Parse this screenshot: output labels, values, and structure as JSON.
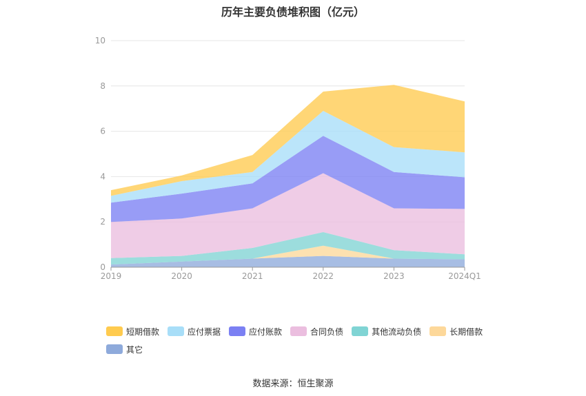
{
  "title": "历年主要负债堆积图（亿元）",
  "source": "数据来源：恒生聚源",
  "chart_data": {
    "type": "area",
    "stacked": true,
    "categories": [
      "2019",
      "2020",
      "2021",
      "2022",
      "2023",
      "2024Q1"
    ],
    "ylim": [
      0,
      10
    ],
    "yticks": [
      "0",
      "2",
      "4",
      "6",
      "8",
      "10"
    ],
    "grid": true,
    "legend_position": "bottom",
    "series": [
      {
        "name": "其它",
        "color": "#8eaadb",
        "values": [
          0.12,
          0.25,
          0.38,
          0.5,
          0.38,
          0.35
        ]
      },
      {
        "name": "长期借款",
        "color": "#fdd89a",
        "values": [
          0.0,
          0.0,
          0.0,
          0.45,
          0.0,
          0.0
        ]
      },
      {
        "name": "其他流动负债",
        "color": "#80d4d4",
        "values": [
          0.28,
          0.25,
          0.47,
          0.6,
          0.37,
          0.22
        ]
      },
      {
        "name": "合同负债",
        "color": "#ebbedf",
        "values": [
          1.6,
          1.65,
          1.75,
          2.6,
          1.85,
          2.0
        ]
      },
      {
        "name": "应付账款",
        "color": "#7b80f3",
        "values": [
          0.85,
          1.1,
          1.1,
          1.65,
          1.6,
          1.4
        ]
      },
      {
        "name": "应付票据",
        "color": "#a8def8",
        "values": [
          0.3,
          0.55,
          0.5,
          1.1,
          1.1,
          1.1
        ]
      },
      {
        "name": "短期借款",
        "color": "#ffcb4f",
        "values": [
          0.25,
          0.25,
          0.75,
          0.85,
          2.75,
          2.25
        ]
      }
    ],
    "legend_order": [
      "短期借款",
      "应付票据",
      "应付账款",
      "合同负债",
      "其他流动负债",
      "长期借款",
      "其它"
    ]
  }
}
